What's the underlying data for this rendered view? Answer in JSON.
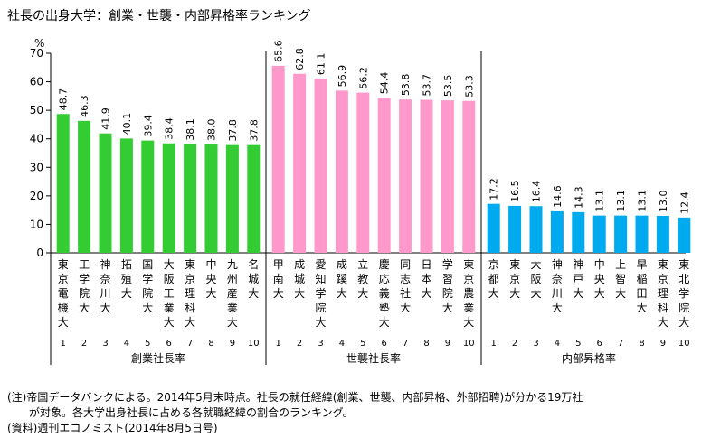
{
  "title": "社長の出身大学：創業・世襲・内部昇格率ランキング",
  "notes": {
    "line1": "(注)帝国データバンクによる。2014年5月末時点。社長の就任経緯(創業、世襲、内部昇格、外部招聘)が分かる19万社",
    "line2": "が対象。各大学出身社長に占める各就職経緯の割合のランキング。",
    "source": "(資料)週刊エコノミスト(2014年8月5日号)"
  },
  "colors": {
    "founder": "#33cc33",
    "heir": "#ff99cc",
    "internal": "#00aaee",
    "axis": "#000000"
  },
  "chart_data": {
    "type": "bar",
    "title": "社長の出身大学：創業・世襲・内部昇格率ランキング",
    "ylabel": "%",
    "ylim": [
      0,
      70
    ],
    "yticks": [
      0,
      10,
      20,
      30,
      40,
      50,
      60,
      70
    ],
    "groups": [
      {
        "name": "創業社長率",
        "color": "#33cc33",
        "categories": [
          "東京電機大",
          "工学院大",
          "神奈川大",
          "拓殖大",
          "国学院大",
          "大阪工業大",
          "東京理科大",
          "中央大",
          "九州産業大",
          "名城大"
        ],
        "ranks": [
          "1",
          "2",
          "3",
          "4",
          "5",
          "6",
          "7",
          "8",
          "9",
          "10"
        ],
        "values": [
          48.7,
          46.3,
          41.9,
          40.1,
          39.4,
          38.4,
          38.1,
          38.0,
          37.8,
          37.8
        ],
        "labels": [
          "48.7",
          "46.3",
          "41.9",
          "40.1",
          "39.4",
          "38.4",
          "38.1",
          "38.0",
          "37.8",
          "37.8"
        ]
      },
      {
        "name": "世襲社長率",
        "color": "#ff99cc",
        "categories": [
          "甲南大",
          "成城大",
          "愛知学院大",
          "成蹊大",
          "立教大",
          "慶応義塾大",
          "同志社大",
          "日本大",
          "学習院大",
          "東京農業大"
        ],
        "ranks": [
          "1",
          "2",
          "3",
          "4",
          "5",
          "6",
          "7",
          "8",
          "9",
          "10"
        ],
        "values": [
          65.6,
          62.8,
          61.1,
          56.9,
          56.2,
          54.4,
          53.8,
          53.7,
          53.5,
          53.3
        ],
        "labels": [
          "65.6",
          "62.8",
          "61.1",
          "56.9",
          "56.2",
          "54.4",
          "53.8",
          "53.7",
          "53.5",
          "53.3"
        ]
      },
      {
        "name": "内部昇格率",
        "color": "#00aaee",
        "categories": [
          "京都大",
          "東京大",
          "大阪大",
          "神奈川大",
          "神戸大",
          "中央大",
          "上智大",
          "早稲田大",
          "東京理科大",
          "東北学院大"
        ],
        "ranks": [
          "1",
          "2",
          "3",
          "4",
          "5",
          "6",
          "7",
          "8",
          "9",
          "10"
        ],
        "values": [
          17.2,
          16.5,
          16.4,
          14.6,
          14.3,
          13.1,
          13.1,
          13.1,
          13.0,
          12.4
        ],
        "labels": [
          "17.2",
          "16.5",
          "16.4",
          "14.6",
          "14.3",
          "13.1",
          "13.1",
          "13.1",
          "13.0",
          "12.4"
        ]
      }
    ]
  }
}
